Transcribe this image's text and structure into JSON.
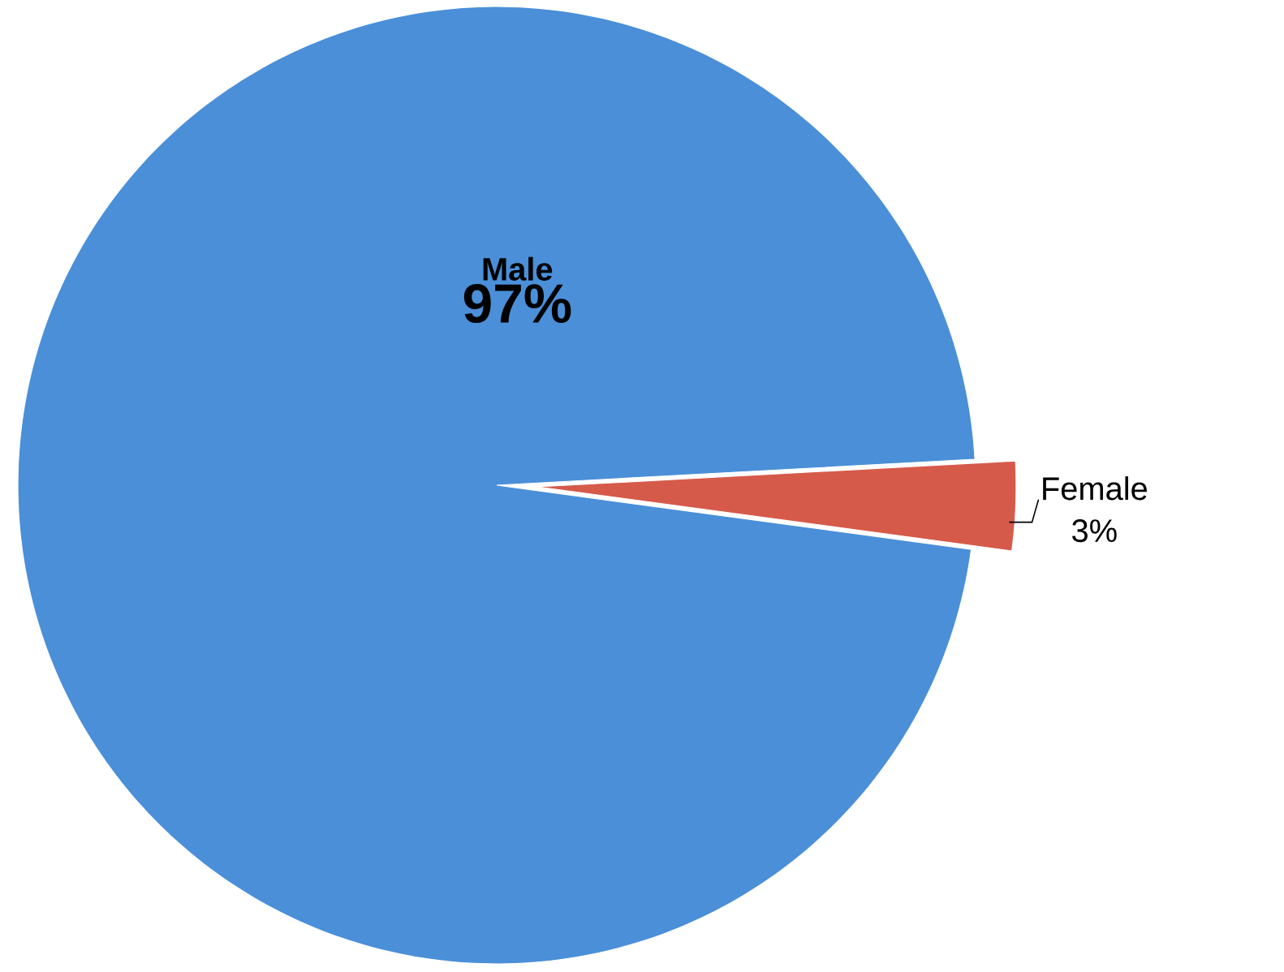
{
  "chart_data": {
    "type": "pie",
    "categories": [
      "Male",
      "Female"
    ],
    "values": [
      97,
      3
    ],
    "colors": [
      "#4a8fd8",
      "#d65a4a"
    ],
    "value_labels": [
      "97%",
      "3%"
    ]
  }
}
